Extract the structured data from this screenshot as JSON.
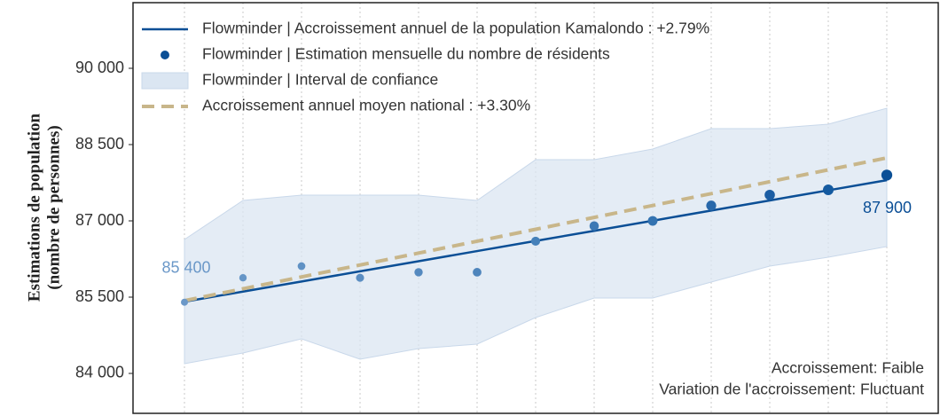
{
  "chart_data": {
    "type": "line",
    "ylabel": [
      "Estimations de population",
      "(nombre de personnes)"
    ],
    "categories": [
      null,
      null,
      null,
      null,
      null,
      null,
      null,
      null,
      null,
      null,
      null,
      null,
      null
    ],
    "ylim": [
      83215,
      91291
    ],
    "yticks": [
      {
        "value": 84000,
        "label": "84 000"
      },
      {
        "value": 85500,
        "label": "85 500"
      },
      {
        "value": 87000,
        "label": "87 000"
      },
      {
        "value": 88500,
        "label": "88 500"
      },
      {
        "value": 90000,
        "label": "90 000"
      }
    ],
    "grid": true,
    "legend": "upper left",
    "series": [
      {
        "name": "Flowminder | Accroissement annuel de la population Kamalondo : +2.79%",
        "kind": "line",
        "color": "#0b4f96",
        "values": [
          85410,
          85609,
          85808,
          86008,
          86207,
          86406,
          86605,
          86804,
          87003,
          87203,
          87402,
          87601,
          87800
        ]
      },
      {
        "name": "Flowminder | Estimation mensuelle du nombre de résidents",
        "kind": "scatter",
        "color": "#0b4f96",
        "colors": [
          "#6b98c8",
          "#6696c7",
          "#5f91c4",
          "#5a8dc2",
          "#5489bf",
          "#4e85bc",
          "#4580b9",
          "#3c79b5",
          "#3373b1",
          "#2868aa",
          "#1b5da3",
          "#145aa0",
          "#0b4f96"
        ],
        "values": [
          85400,
          85880,
          86110,
          85880,
          85990,
          85990,
          86600,
          86900,
          87000,
          87300,
          87510,
          87610,
          87900
        ],
        "value_labels": [
          "85 400",
          null,
          null,
          null,
          null,
          null,
          null,
          null,
          null,
          null,
          null,
          null,
          "87 900"
        ]
      },
      {
        "name": "Flowminder | Interval de confiance",
        "kind": "band",
        "color": "#dbe6f2",
        "lower": [
          84192,
          84401,
          84680,
          84279,
          84488,
          84576,
          85099,
          85482,
          85482,
          85796,
          86110,
          86285,
          86494
        ],
        "upper": [
          86634,
          87401,
          87506,
          87506,
          87506,
          87401,
          88203,
          88203,
          88413,
          88814,
          88814,
          88901,
          89215
        ]
      },
      {
        "name": "Accroissement annuel moyen national : +3.30%",
        "kind": "line",
        "dash": true,
        "color": "#c8b68a",
        "values": [
          85430,
          85664,
          85898,
          86132,
          86366,
          86600,
          86834,
          87068,
          87302,
          87536,
          87770,
          88004,
          88238
        ]
      }
    ],
    "annotations": [
      "Accroissement: Faible",
      "Variation de l'accroissement: Fluctuant"
    ]
  }
}
